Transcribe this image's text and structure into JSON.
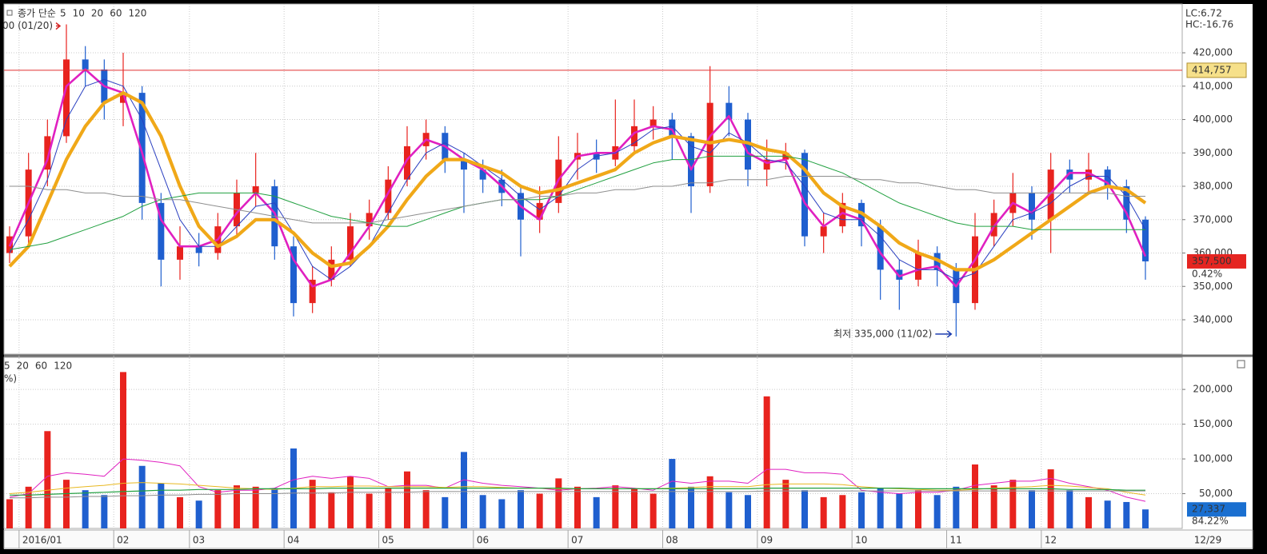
{
  "chart_data": [
    {
      "type": "candlestick",
      "legend_title": "종가 단순",
      "stats": [
        "LC:6.72",
        "HC:-16.76"
      ],
      "up_color": "#e8231e",
      "down_color": "#1f5fcf",
      "categories": [
        null,
        "2016/01",
        null,
        null,
        null,
        null,
        "02",
        null,
        null,
        null,
        "03",
        null,
        null,
        null,
        null,
        "04",
        null,
        null,
        null,
        null,
        "05",
        null,
        null,
        null,
        null,
        "06",
        null,
        null,
        null,
        null,
        "07",
        null,
        null,
        null,
        null,
        "08",
        null,
        null,
        null,
        null,
        "09",
        null,
        null,
        null,
        null,
        "10",
        null,
        null,
        null,
        null,
        "11",
        null,
        null,
        null,
        null,
        "12",
        null,
        null,
        null,
        null,
        null
      ],
      "end_label": "12/29",
      "open": [
        360000,
        365000,
        385000,
        395000,
        418000,
        415000,
        405000,
        408000,
        375000,
        358000,
        362000,
        360000,
        368000,
        378000,
        380000,
        362000,
        345000,
        352000,
        358000,
        368000,
        372000,
        382000,
        392000,
        396000,
        388000,
        385000,
        382000,
        378000,
        370000,
        375000,
        388000,
        390000,
        388000,
        392000,
        398000,
        400000,
        395000,
        380000,
        405000,
        400000,
        385000,
        388000,
        390000,
        365000,
        368000,
        375000,
        368000,
        355000,
        352000,
        360000,
        355000,
        345000,
        365000,
        372000,
        378000,
        370000,
        385000,
        382000,
        385000,
        380000,
        370000
      ],
      "high": [
        368000,
        390000,
        400000,
        428500,
        422000,
        418000,
        420000,
        410000,
        378000,
        368000,
        366000,
        372000,
        382000,
        390000,
        382000,
        365000,
        356000,
        362000,
        372000,
        376000,
        386000,
        398000,
        400000,
        398000,
        390000,
        388000,
        385000,
        380000,
        380000,
        395000,
        396000,
        394000,
        406000,
        406000,
        404000,
        402000,
        396000,
        416000,
        410000,
        402000,
        394000,
        393000,
        391000,
        372000,
        378000,
        376000,
        370000,
        358000,
        364000,
        362000,
        357000,
        372000,
        376000,
        384000,
        380000,
        390000,
        388000,
        390000,
        386000,
        382000,
        371000
      ],
      "low": [
        357000,
        362000,
        380000,
        393000,
        410000,
        400000,
        398000,
        370000,
        350000,
        352000,
        356000,
        358000,
        365000,
        374000,
        358000,
        341000,
        342000,
        350000,
        356000,
        364000,
        370000,
        380000,
        388000,
        384000,
        372000,
        378000,
        374000,
        359000,
        366000,
        372000,
        382000,
        384000,
        386000,
        390000,
        394000,
        388000,
        372000,
        378000,
        395000,
        380000,
        380000,
        385000,
        362000,
        360000,
        366000,
        362000,
        346000,
        343000,
        350000,
        350000,
        335000,
        343000,
        362000,
        368000,
        364000,
        360000,
        378000,
        378000,
        376000,
        366000,
        352000
      ],
      "close": [
        365000,
        385000,
        395000,
        418000,
        415000,
        405000,
        408000,
        375000,
        358000,
        362000,
        360000,
        368000,
        378000,
        380000,
        362000,
        345000,
        352000,
        358000,
        368000,
        372000,
        382000,
        392000,
        396000,
        388000,
        385000,
        382000,
        378000,
        370000,
        375000,
        388000,
        390000,
        388000,
        392000,
        398000,
        400000,
        395000,
        380000,
        405000,
        400000,
        385000,
        388000,
        390000,
        365000,
        368000,
        375000,
        368000,
        355000,
        352000,
        360000,
        355000,
        345000,
        365000,
        372000,
        378000,
        370000,
        385000,
        382000,
        385000,
        380000,
        370000,
        357500
      ],
      "series": [
        {
          "name": "5",
          "color": "#e020c0",
          "values": [
            362000,
            375000,
            388000,
            410000,
            415000,
            410000,
            408000,
            390000,
            370000,
            362000,
            362000,
            364000,
            372000,
            378000,
            372000,
            358000,
            350000,
            352000,
            360000,
            368000,
            378000,
            388000,
            394000,
            392000,
            388000,
            385000,
            380000,
            374000,
            370000,
            382000,
            389000,
            390000,
            390000,
            396000,
            398000,
            397000,
            385000,
            395000,
            401000,
            390000,
            387000,
            388000,
            375000,
            368000,
            372000,
            370000,
            360000,
            353000,
            355000,
            356000,
            350000,
            358000,
            368000,
            375000,
            372000,
            378000,
            384000,
            384000,
            381000,
            372000,
            359000
          ]
        },
        {
          "name": "10",
          "color": "#2a3fc0",
          "values": [
            360000,
            370000,
            382000,
            400000,
            410000,
            412000,
            410000,
            400000,
            385000,
            370000,
            362000,
            362000,
            368000,
            374000,
            375000,
            366000,
            356000,
            352000,
            356000,
            362000,
            372000,
            382000,
            390000,
            393000,
            390000,
            386000,
            382000,
            377000,
            373000,
            377000,
            385000,
            389000,
            390000,
            393000,
            397000,
            398000,
            392000,
            390000,
            396000,
            393000,
            388000,
            387000,
            380000,
            372000,
            370000,
            370000,
            365000,
            358000,
            355000,
            355000,
            352000,
            354000,
            362000,
            370000,
            372000,
            375000,
            380000,
            383000,
            383000,
            377000,
            367000
          ]
        },
        {
          "name": "20",
          "color": "#f0a818",
          "values": [
            356000,
            362000,
            375000,
            388000,
            398000,
            405000,
            408000,
            405000,
            395000,
            380000,
            368000,
            362000,
            365000,
            370000,
            370000,
            366000,
            360000,
            356000,
            357000,
            362000,
            368000,
            376000,
            383000,
            388000,
            388000,
            386000,
            384000,
            380000,
            378000,
            379000,
            381000,
            383000,
            385000,
            390000,
            393000,
            395000,
            394000,
            393000,
            394000,
            393000,
            391000,
            390000,
            385000,
            378000,
            374000,
            372000,
            368000,
            363000,
            360000,
            358000,
            355000,
            355000,
            358000,
            362000,
            366000,
            370000,
            374000,
            378000,
            380000,
            379000,
            375000
          ]
        },
        {
          "name": "60",
          "color": "#21a040",
          "values": [
            361000,
            362000,
            363000,
            365000,
            367000,
            369000,
            371000,
            374000,
            376000,
            377000,
            378000,
            378000,
            378000,
            378000,
            377000,
            375000,
            373000,
            371000,
            370000,
            369000,
            368000,
            368000,
            370000,
            372000,
            374000,
            375000,
            376000,
            376000,
            376000,
            377000,
            379000,
            381000,
            383000,
            385000,
            387000,
            388000,
            388000,
            389000,
            389000,
            389000,
            389000,
            389000,
            388000,
            386000,
            384000,
            381000,
            378000,
            375000,
            373000,
            371000,
            369000,
            368000,
            368000,
            368000,
            367000,
            367000,
            367000,
            367000,
            367000,
            367000,
            367000
          ]
        },
        {
          "name": "120",
          "color": "#8e8e8e",
          "values": [
            380000,
            380000,
            379000,
            379000,
            378000,
            378000,
            377000,
            377000,
            376000,
            376000,
            375000,
            374000,
            373000,
            372000,
            371000,
            370000,
            369000,
            369000,
            369000,
            369000,
            370000,
            371000,
            372000,
            373000,
            374000,
            375000,
            376000,
            376000,
            377000,
            377000,
            378000,
            378000,
            379000,
            379000,
            380000,
            380000,
            381000,
            381000,
            382000,
            382000,
            382000,
            383000,
            383000,
            383000,
            383000,
            382000,
            382000,
            381000,
            381000,
            380000,
            379000,
            379000,
            378000,
            378000,
            378000,
            378000,
            378000,
            378000,
            378000,
            377000,
            377000
          ]
        }
      ],
      "ylim": [
        329700,
        433900
      ],
      "yticks": [
        {
          "value": 340000,
          "label": "340,000"
        },
        {
          "value": 350000,
          "label": "350,000"
        },
        {
          "value": 360000,
          "label": "360,000"
        },
        {
          "value": 370000,
          "label": "370,000"
        },
        {
          "value": 380000,
          "label": "380,000"
        },
        {
          "value": 390000,
          "label": "390,000"
        },
        {
          "value": 400000,
          "label": "400,000"
        },
        {
          "value": 410000,
          "label": "410,000"
        },
        {
          "value": 420000,
          "label": "420,000"
        }
      ],
      "reference_line": {
        "value": 414757,
        "label": "414,757",
        "color": "#e03030"
      },
      "current": {
        "value": 357500,
        "label": "357,500",
        "change": "0.42%"
      },
      "high_annotation": {
        "label": "00 (01/20)"
      },
      "low_annotation": {
        "value": 335000,
        "label": "최저 335,000 (11/02)"
      },
      "grid": true
    },
    {
      "type": "bar",
      "values": [
        42000,
        60000,
        140000,
        70000,
        55000,
        48000,
        225000,
        90000,
        65000,
        45000,
        40000,
        55000,
        62000,
        60000,
        58000,
        115000,
        70000,
        52000,
        75000,
        50000,
        58000,
        82000,
        55000,
        45000,
        110000,
        48000,
        42000,
        55000,
        50000,
        72000,
        60000,
        45000,
        62000,
        58000,
        50000,
        100000,
        60000,
        75000,
        52000,
        48000,
        190000,
        70000,
        55000,
        45000,
        48000,
        52000,
        58000,
        50000,
        55000,
        48000,
        60000,
        92000,
        62000,
        70000,
        55000,
        85000,
        55000,
        45000,
        40000,
        38000,
        27337
      ],
      "note": "%)",
      "series": [
        {
          "name": "5",
          "color": "#e020c0",
          "values": [
            45000,
            50000,
            75000,
            80000,
            78000,
            75000,
            100000,
            98000,
            95000,
            90000,
            60000,
            52000,
            55000,
            55000,
            58000,
            70000,
            75000,
            72000,
            75000,
            72000,
            60000,
            62000,
            62000,
            58000,
            70000,
            65000,
            62000,
            60000,
            58000,
            55000,
            57000,
            58000,
            60000,
            58000,
            55000,
            68000,
            65000,
            68000,
            68000,
            65000,
            85000,
            85000,
            80000,
            80000,
            78000,
            55000,
            52000,
            50000,
            52000,
            52000,
            55000,
            62000,
            65000,
            68000,
            68000,
            72000,
            65000,
            60000,
            55000,
            45000,
            39000
          ]
        },
        {
          "name": "20",
          "color": "#e8b820",
          "values": [
            50000,
            52000,
            55000,
            58000,
            60000,
            62000,
            65000,
            66000,
            65000,
            64000,
            62000,
            60000,
            58000,
            57000,
            56000,
            58000,
            60000,
            60000,
            61000,
            61000,
            60000,
            60000,
            60000,
            59000,
            60000,
            60000,
            59000,
            58000,
            58000,
            57000,
            57000,
            57000,
            57000,
            57000,
            57000,
            58000,
            59000,
            60000,
            60000,
            60000,
            63000,
            64000,
            64000,
            64000,
            63000,
            60000,
            58000,
            57000,
            56000,
            55000,
            55000,
            56000,
            58000,
            59000,
            60000,
            62000,
            61000,
            59000,
            57000,
            52000,
            48000
          ]
        },
        {
          "name": "60",
          "color": "#21a040",
          "values": [
            48000,
            48000,
            49000,
            50000,
            51000,
            52000,
            53000,
            54000,
            55000,
            55000,
            56000,
            56000,
            56000,
            57000,
            57000,
            57000,
            57000,
            58000,
            58000,
            58000,
            58000,
            58000,
            58000,
            58000,
            58000,
            58000,
            58000,
            58000,
            58000,
            58000,
            57000,
            57000,
            57000,
            57000,
            57000,
            57000,
            57000,
            57000,
            57000,
            57000,
            58000,
            58000,
            58000,
            58000,
            58000,
            58000,
            58000,
            58000,
            57000,
            57000,
            57000,
            57000,
            57000,
            57000,
            57000,
            57000,
            56000,
            56000,
            56000,
            55000,
            55000
          ]
        },
        {
          "name": "120",
          "color": "#8e8e8e",
          "values": [
            44000,
            44000,
            45000,
            45000,
            46000,
            46000,
            47000,
            47000,
            48000,
            48000,
            49000,
            49000,
            50000,
            50000,
            50000,
            51000,
            51000,
            51000,
            52000,
            52000,
            52000,
            52000,
            53000,
            53000,
            53000,
            53000,
            53000,
            53000,
            53000,
            53000,
            53000,
            53000,
            53000,
            53000,
            53000,
            53000,
            53000,
            53000,
            53000,
            53000,
            54000,
            54000,
            54000,
            54000,
            54000,
            54000,
            54000,
            54000,
            54000,
            54000,
            54000,
            54000,
            54000,
            54000,
            54000,
            54000,
            54000,
            54000,
            54000,
            54000,
            54000
          ]
        }
      ],
      "ylim": [
        0,
        245000
      ],
      "yticks": [
        {
          "value": 50000,
          "label": "50,000"
        },
        {
          "value": 100000,
          "label": "100,000"
        },
        {
          "value": 150000,
          "label": "150,000"
        },
        {
          "value": 200000,
          "label": "200,000"
        }
      ],
      "current": {
        "value": 27337,
        "label": "27,337",
        "change": "84.22%"
      },
      "grid": true
    }
  ]
}
